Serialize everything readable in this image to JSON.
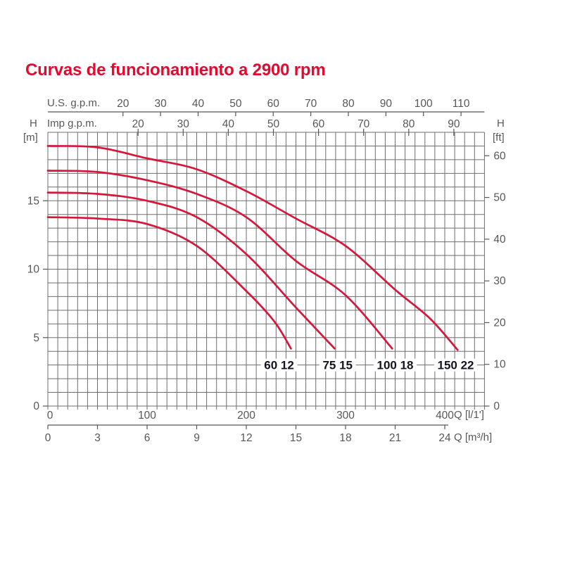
{
  "page": {
    "title": "Curvas de funcionamiento a 2900 rpm"
  },
  "colors": {
    "title_red": "#e20a2e",
    "curve_red": "#d5173a",
    "grid_gray": "#6e6e6e",
    "axis_gray": "#57575b",
    "label_dark": "#13131f",
    "background": "#ffffff"
  },
  "chart_data": {
    "type": "line",
    "title": "Curvas de funcionamiento a 2900 rpm",
    "grid": "on",
    "x_range_l_min": [
      0,
      440
    ],
    "y_range_m": [
      0,
      20
    ],
    "grid_step": {
      "x_l_min": 10,
      "y_m": 1
    },
    "x_axes": {
      "us_gpm": {
        "label": "U.S. g.p.m.",
        "ticks": [
          20,
          30,
          40,
          50,
          60,
          70,
          80,
          90,
          100,
          110
        ],
        "l_min_per_unit": 3.7854
      },
      "imp_gpm": {
        "label": "Imp g.p.m.",
        "ticks": [
          20,
          30,
          40,
          50,
          60,
          70,
          80,
          90
        ],
        "l_min_per_unit": 4.5461
      },
      "l_min": {
        "label": "Q [l/1']",
        "ticks": [
          0,
          100,
          200,
          300,
          400
        ],
        "l_min_per_unit": 1
      },
      "m3_h": {
        "label": "Q [m³/h]",
        "ticks": [
          0,
          3,
          6,
          9,
          12,
          15,
          18,
          21,
          24
        ],
        "l_min_per_unit": 16.667
      }
    },
    "y_axes": {
      "meters": {
        "label_top": "H",
        "label_unit": "[m]",
        "side": "left",
        "ticks": [
          0,
          5,
          10,
          15
        ],
        "m_per_unit": 1
      },
      "feet": {
        "label_top": "H",
        "label_unit": "[ft]",
        "side": "right",
        "ticks": [
          0,
          10,
          20,
          30,
          40,
          50,
          60
        ],
        "m_per_unit": 0.3048
      }
    },
    "series": [
      {
        "name": "60 12",
        "points": [
          [
            0,
            13.8
          ],
          [
            50,
            13.7
          ],
          [
            100,
            13.3
          ],
          [
            150,
            11.7
          ],
          [
            200,
            8.4
          ],
          [
            228,
            6.2
          ],
          [
            245,
            4.2
          ]
        ],
        "label_q": 233,
        "label_h": 3.0
      },
      {
        "name": "75 15",
        "points": [
          [
            0,
            15.6
          ],
          [
            50,
            15.5
          ],
          [
            100,
            15.0
          ],
          [
            150,
            13.8
          ],
          [
            200,
            11.1
          ],
          [
            250,
            7.2
          ],
          [
            289,
            4.2
          ]
        ],
        "label_q": 292,
        "label_h": 3.0
      },
      {
        "name": "100 18",
        "points": [
          [
            0,
            17.2
          ],
          [
            50,
            17.1
          ],
          [
            100,
            16.5
          ],
          [
            150,
            15.5
          ],
          [
            200,
            13.8
          ],
          [
            250,
            10.6
          ],
          [
            300,
            8.1
          ],
          [
            347,
            4.2
          ]
        ],
        "label_q": 350,
        "label_h": 3.0
      },
      {
        "name": "150 22",
        "points": [
          [
            0,
            19.0
          ],
          [
            50,
            18.9
          ],
          [
            100,
            18.1
          ],
          [
            150,
            17.3
          ],
          [
            200,
            15.7
          ],
          [
            250,
            13.7
          ],
          [
            300,
            11.7
          ],
          [
            350,
            8.5
          ],
          [
            385,
            6.4
          ],
          [
            413,
            4.1
          ]
        ],
        "label_q": 411,
        "label_h": 3.0
      }
    ]
  }
}
